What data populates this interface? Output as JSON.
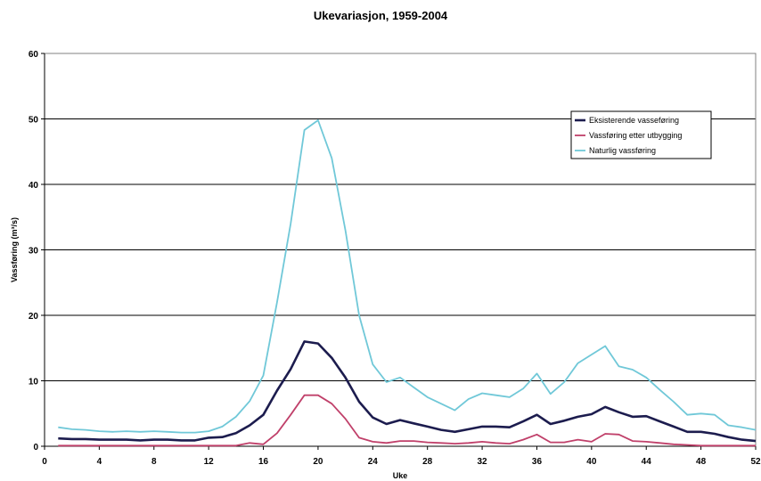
{
  "chart_data": {
    "type": "line",
    "title": "Ukevariasjon, 1959-2004",
    "xlabel": "Uke",
    "ylabel": "Vassføring (m³/s)",
    "xlim": [
      0,
      52
    ],
    "ylim": [
      0,
      60
    ],
    "xticks": [
      0,
      4,
      8,
      12,
      16,
      20,
      24,
      28,
      32,
      36,
      40,
      44,
      48,
      52
    ],
    "yticks": [
      0,
      10,
      20,
      30,
      40,
      50,
      60
    ],
    "grid": "horizontal",
    "legend_position": "top-right",
    "x": [
      1,
      2,
      3,
      4,
      5,
      6,
      7,
      8,
      9,
      10,
      11,
      12,
      13,
      14,
      15,
      16,
      17,
      18,
      19,
      20,
      21,
      22,
      23,
      24,
      25,
      26,
      27,
      28,
      29,
      30,
      31,
      32,
      33,
      34,
      35,
      36,
      37,
      38,
      39,
      40,
      41,
      42,
      43,
      44,
      45,
      46,
      47,
      48,
      49,
      50,
      51,
      52
    ],
    "series": [
      {
        "name": "Eksisterende vasseføring",
        "color": "#1c1c4e",
        "values": [
          1.2,
          1.1,
          1.1,
          1.0,
          1.0,
          1.0,
          0.9,
          1.0,
          1.0,
          0.9,
          0.9,
          1.3,
          1.4,
          2.0,
          3.2,
          4.8,
          8.5,
          11.8,
          16.0,
          15.7,
          13.5,
          10.5,
          6.8,
          4.4,
          3.4,
          4.0,
          3.5,
          3.0,
          2.5,
          2.2,
          2.6,
          3.0,
          3.0,
          2.9,
          3.8,
          4.8,
          3.4,
          3.9,
          4.5,
          4.9,
          6.0,
          5.2,
          4.5,
          4.6,
          3.8,
          3.0,
          2.2,
          2.2,
          1.9,
          1.4,
          1.0,
          0.8
        ]
      },
      {
        "name": "Vassføring etter utbygging",
        "color": "#c0406a",
        "values": [
          0.1,
          0.1,
          0.1,
          0.1,
          0.1,
          0.1,
          0.1,
          0.1,
          0.1,
          0.1,
          0.1,
          0.1,
          0.1,
          0.1,
          0.5,
          0.3,
          2.0,
          4.8,
          7.8,
          7.8,
          6.5,
          4.2,
          1.3,
          0.7,
          0.5,
          0.8,
          0.8,
          0.6,
          0.5,
          0.4,
          0.5,
          0.7,
          0.5,
          0.4,
          1.0,
          1.8,
          0.6,
          0.6,
          1.0,
          0.7,
          1.9,
          1.8,
          0.8,
          0.7,
          0.5,
          0.3,
          0.2,
          0.1,
          0.1,
          0.1,
          0.1,
          0.1
        ]
      },
      {
        "name": "Naturlig vassføring",
        "color": "#70c8d8",
        "values": [
          2.9,
          2.6,
          2.5,
          2.3,
          2.2,
          2.3,
          2.2,
          2.3,
          2.2,
          2.1,
          2.1,
          2.3,
          3.0,
          4.5,
          6.9,
          10.8,
          22.0,
          34.0,
          48.3,
          49.8,
          44.0,
          33.0,
          20.0,
          12.5,
          9.8,
          10.5,
          9.0,
          7.5,
          6.5,
          5.5,
          7.2,
          8.1,
          7.8,
          7.5,
          8.8,
          11.1,
          8.0,
          9.8,
          12.7,
          14.0,
          15.3,
          12.2,
          11.7,
          10.5,
          8.6,
          6.8,
          4.8,
          5.0,
          4.8,
          3.2,
          2.9,
          2.5
        ]
      }
    ]
  }
}
